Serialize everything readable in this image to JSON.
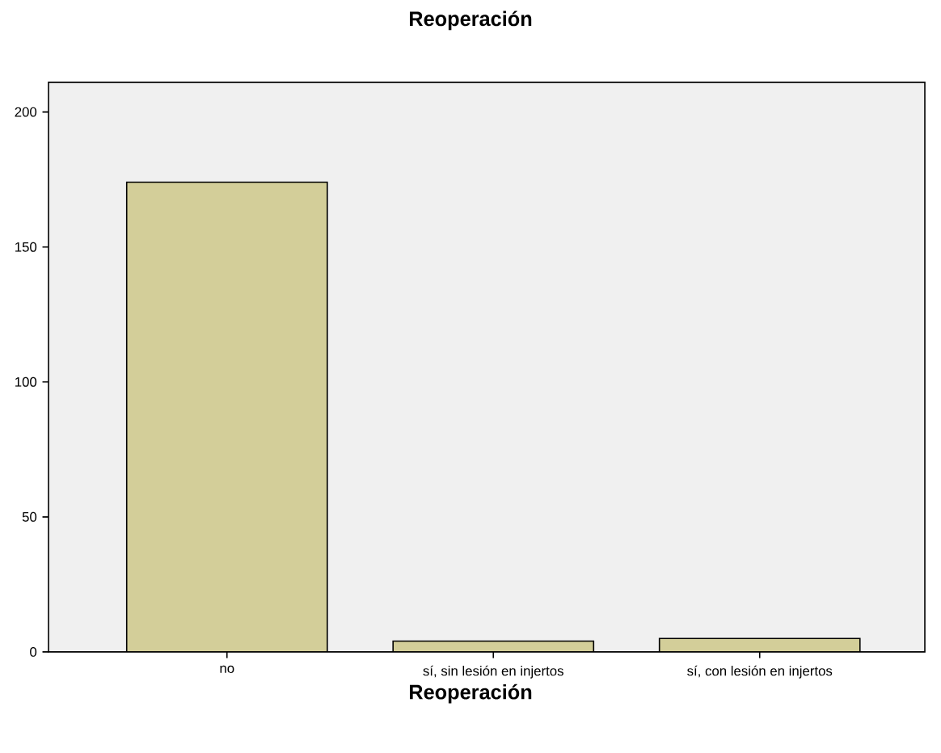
{
  "chart_data": {
    "type": "bar",
    "title": "Reoperación",
    "xlabel": "Reoperación",
    "categories": [
      "no",
      "sí, sin lesión en injertos",
      "sí, con lesión en injertos"
    ],
    "values": [
      174,
      4,
      5
    ],
    "color": "#d3ce99",
    "ylim": [
      0,
      211
    ],
    "yticks": [
      0,
      50,
      100,
      150,
      200
    ],
    "grid": false
  }
}
